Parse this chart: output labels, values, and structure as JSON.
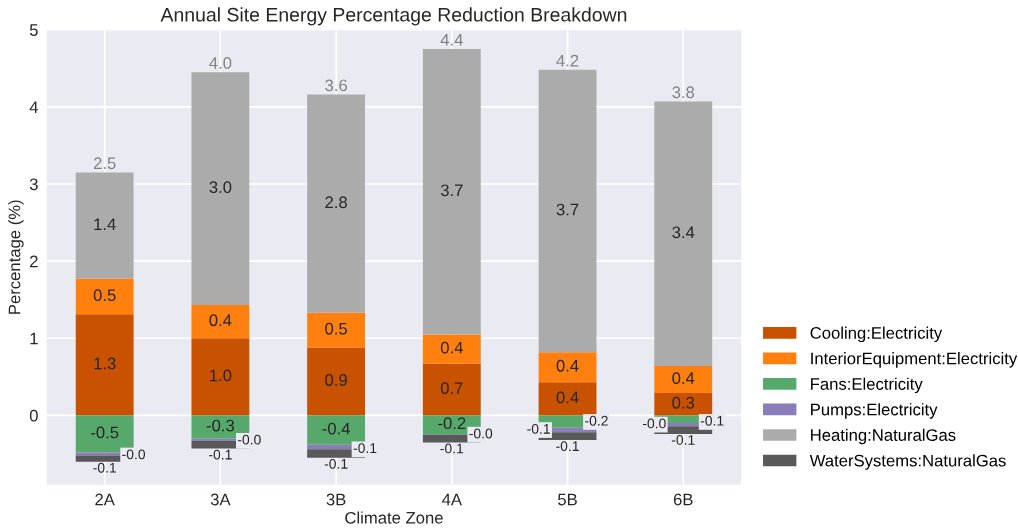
{
  "chart_data": {
    "type": "bar",
    "title": "Annual Site Energy Percentage Reduction Breakdown",
    "xlabel": "Climate Zone",
    "ylabel": "Percentage (%)",
    "categories": [
      "2A",
      "3A",
      "3B",
      "4A",
      "5B",
      "6B"
    ],
    "stacked": true,
    "series": [
      {
        "name": "Cooling:Electricity",
        "color": "#c85200",
        "values": [
          1.31,
          1.0,
          0.88,
          0.67,
          0.43,
          0.29
        ],
        "value_labels": [
          "1.3",
          "1.0",
          "0.9",
          "0.7",
          "0.4",
          "0.3"
        ]
      },
      {
        "name": "InteriorEquipment:Electricity",
        "color": "#ff800e",
        "values": [
          0.46,
          0.43,
          0.45,
          0.38,
          0.39,
          0.35
        ],
        "value_labels": [
          "0.5",
          "0.4",
          "0.5",
          "0.4",
          "0.4",
          "0.4"
        ]
      },
      {
        "name": "Fans:Electricity",
        "color": "#57a86b",
        "values": [
          -0.48,
          -0.3,
          -0.38,
          -0.24,
          -0.16,
          -0.1
        ],
        "value_labels": [
          "-0.5",
          "-0.3",
          "-0.4",
          "-0.2",
          "-0.2",
          "-0.1"
        ]
      },
      {
        "name": "Pumps:Electricity",
        "color": "#8a7dba",
        "values": [
          -0.04,
          -0.03,
          -0.06,
          -0.01,
          -0.06,
          -0.04
        ],
        "value_labels": [
          "-0.0",
          "-0.0",
          "-0.1",
          "-0.0",
          "-0.1",
          "-0.0"
        ]
      },
      {
        "name": "Heating:NaturalGas",
        "color": "#ababab",
        "values": [
          1.38,
          3.02,
          2.83,
          3.7,
          3.66,
          3.43
        ],
        "value_labels": [
          "1.4",
          "3.0",
          "2.8",
          "3.7",
          "3.7",
          "3.4"
        ]
      },
      {
        "name": "WaterSystems:NaturalGas",
        "color": "#595959",
        "values": [
          -0.08,
          -0.1,
          -0.11,
          -0.1,
          -0.1,
          -0.1
        ],
        "value_labels": [
          "-0.1",
          "-0.1",
          "-0.1",
          "-0.1",
          "-0.1",
          "-0.1"
        ]
      }
    ],
    "totals": [
      "2.5",
      "4.0",
      "3.6",
      "4.4",
      "4.2",
      "3.8"
    ],
    "ylim": [
      -0.9,
      5
    ],
    "yticks": [
      0,
      1,
      2,
      3,
      4,
      5
    ],
    "grid": true,
    "legend": "bottom right"
  }
}
